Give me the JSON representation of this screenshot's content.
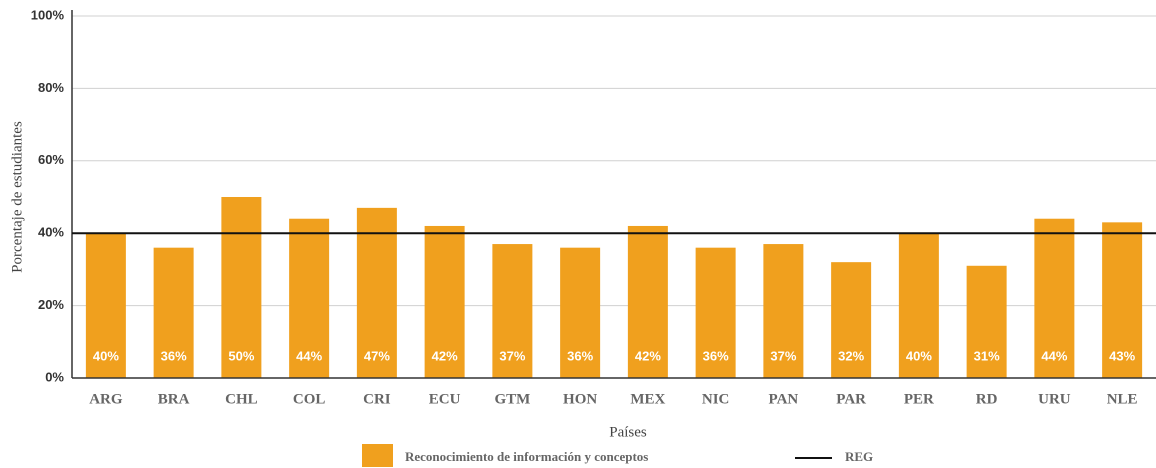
{
  "chart_data": {
    "type": "bar",
    "y_axis_label": "Porcentaje de estudiantes",
    "x_axis_label": "Países",
    "categories": [
      "ARG",
      "BRA",
      "CHL",
      "COL",
      "CRI",
      "ECU",
      "GTM",
      "HON",
      "MEX",
      "NIC",
      "PAN",
      "PAR",
      "PER",
      "RD",
      "URU",
      "NLE"
    ],
    "series": [
      {
        "name": "Reconocimiento de información y conceptos",
        "color": "#f0a01e",
        "values": [
          40,
          36,
          50,
          44,
          47,
          42,
          37,
          36,
          42,
          36,
          37,
          32,
          40,
          31,
          44,
          43
        ],
        "value_labels": [
          "40%",
          "36%",
          "50%",
          "44%",
          "47%",
          "42%",
          "37%",
          "36%",
          "42%",
          "36%",
          "37%",
          "32%",
          "40%",
          "31%",
          "44%",
          "43%"
        ]
      }
    ],
    "reference_line": {
      "name": "REG",
      "value": 40,
      "color": "#111111"
    },
    "ylim": [
      0,
      100
    ],
    "yticks": [
      {
        "value": 0,
        "label": "0%"
      },
      {
        "value": 20,
        "label": "20%"
      },
      {
        "value": 40,
        "label": "40%"
      },
      {
        "value": 60,
        "label": "60%"
      },
      {
        "value": 80,
        "label": "80%"
      },
      {
        "value": 100,
        "label": "100%"
      }
    ],
    "grid": true
  }
}
